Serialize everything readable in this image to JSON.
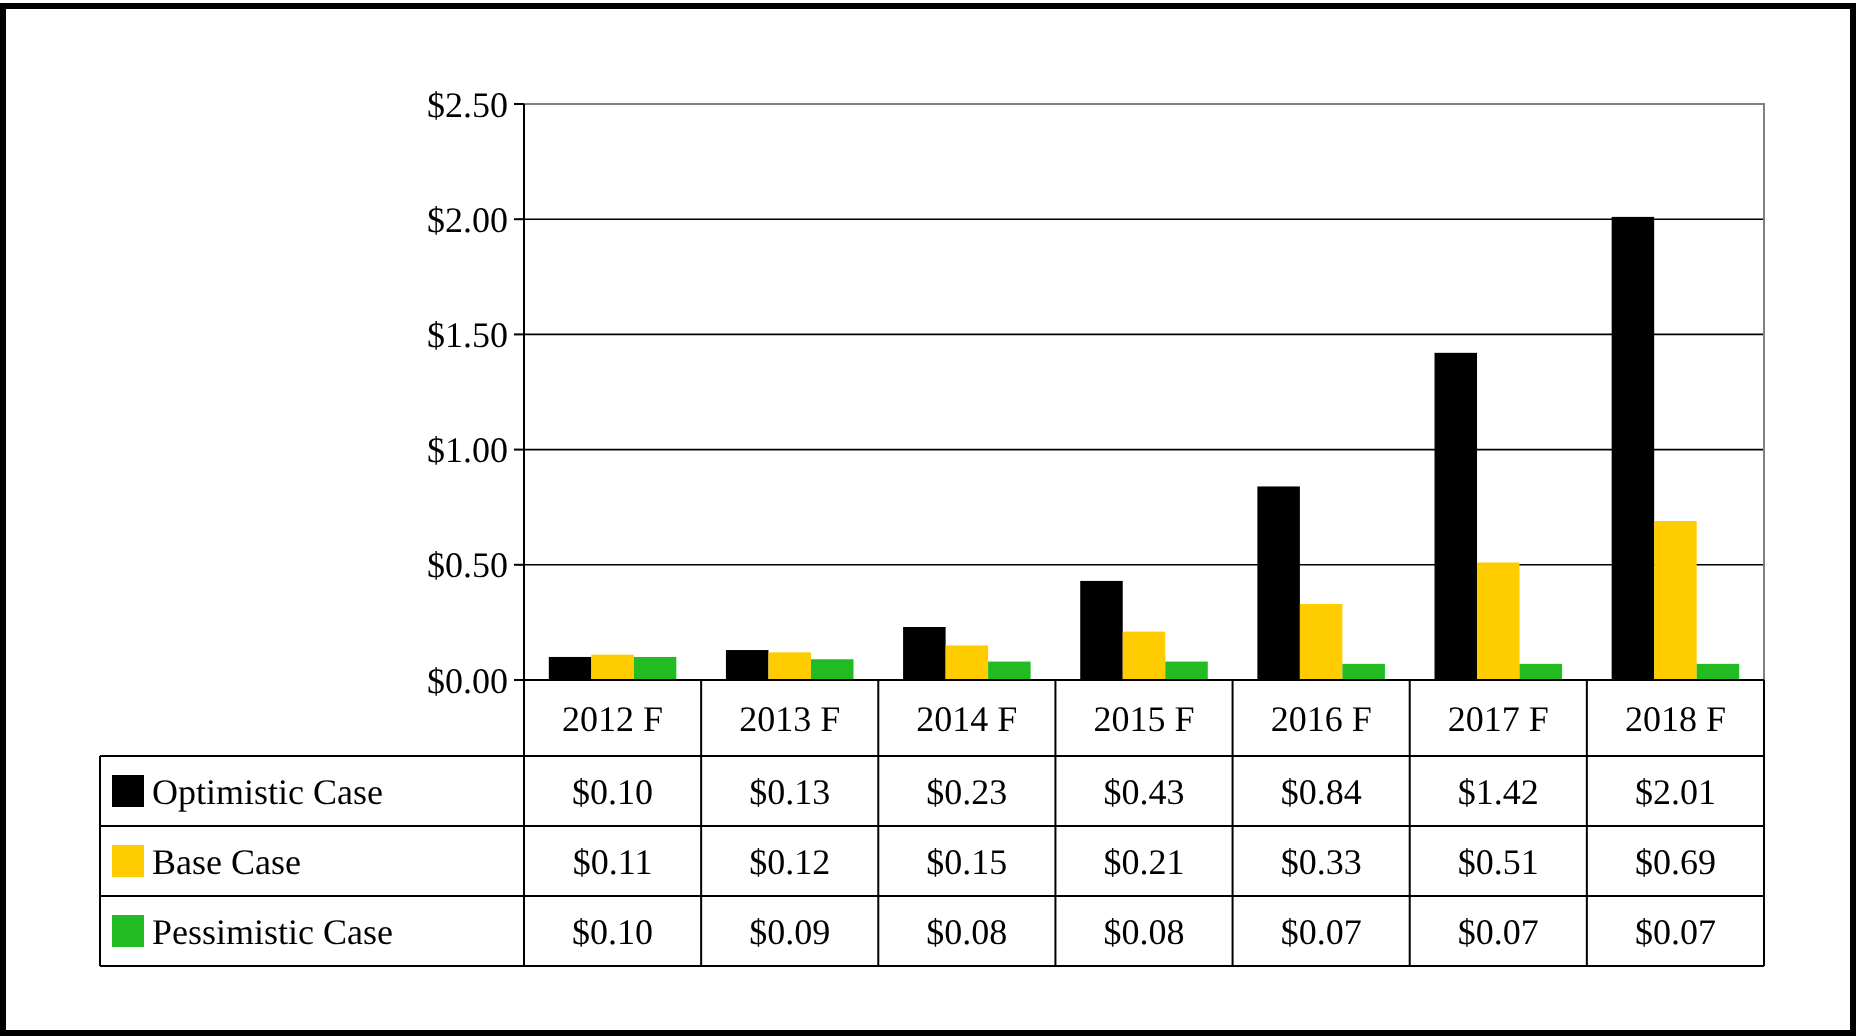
{
  "chart_data": {
    "type": "bar",
    "categories": [
      "2012 F",
      "2013 F",
      "2014 F",
      "2015 F",
      "2016 F",
      "2017 F",
      "2018 F"
    ],
    "series": [
      {
        "name": "Optimistic Case",
        "color": "#000000",
        "values": [
          0.1,
          0.13,
          0.23,
          0.43,
          0.84,
          1.42,
          2.01
        ],
        "value_labels": [
          "$0.10",
          "$0.13",
          "$0.23",
          "$0.43",
          "$0.84",
          "$1.42",
          "$2.01"
        ]
      },
      {
        "name": "Base Case",
        "color": "#ffcc00",
        "values": [
          0.11,
          0.12,
          0.15,
          0.21,
          0.33,
          0.51,
          0.69
        ],
        "value_labels": [
          "$0.11",
          "$0.12",
          "$0.15",
          "$0.21",
          "$0.33",
          "$0.51",
          "$0.69"
        ]
      },
      {
        "name": "Pessimistic Case",
        "color": "#22bb22",
        "values": [
          0.1,
          0.09,
          0.08,
          0.08,
          0.07,
          0.07,
          0.07
        ],
        "value_labels": [
          "$0.10",
          "$0.09",
          "$0.08",
          "$0.08",
          "$0.07",
          "$0.07",
          "$0.07"
        ]
      }
    ],
    "ylim": [
      0,
      2.5
    ],
    "yticks": [
      {
        "value": 0,
        "label": "$0.00"
      },
      {
        "value": 0.5,
        "label": "$0.50"
      },
      {
        "value": 1,
        "label": "$1.00"
      },
      {
        "value": 1.5,
        "label": "$1.50"
      },
      {
        "value": 2,
        "label": "$2.00"
      },
      {
        "value": 2.5,
        "label": "$2.50"
      }
    ],
    "grid": "y",
    "legend": "bottom left"
  }
}
